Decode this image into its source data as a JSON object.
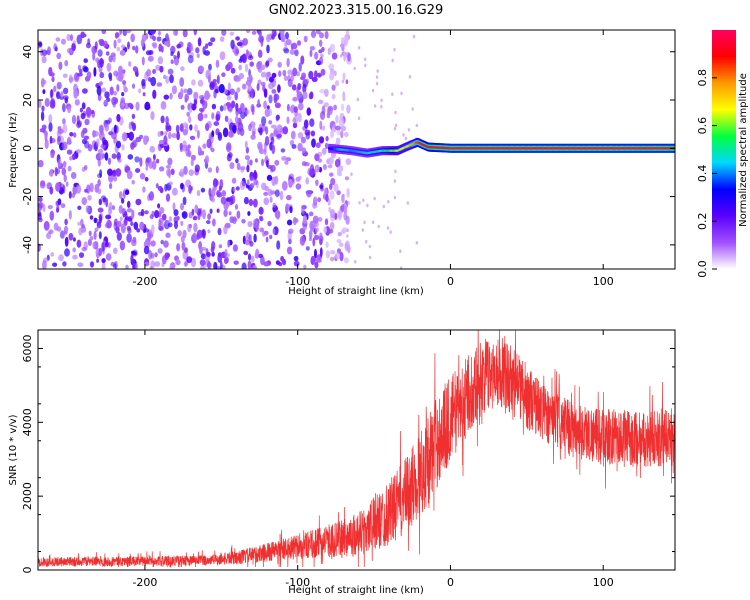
{
  "title": "GN02.2023.315.00.16.G29",
  "chart_data": [
    {
      "type": "heatmap",
      "panel": "spectrogram",
      "xlabel": "Height of straight line (km)",
      "ylabel": "Frequency (Hz)",
      "xlim": [
        -270,
        147
      ],
      "ylim": [
        -50,
        49
      ],
      "xticks": [
        -200,
        -100,
        0,
        100
      ],
      "yticks": [
        -40,
        -20,
        0,
        20,
        40
      ],
      "colorbar": {
        "label": "Normalized spectral amplitude",
        "range": [
          0,
          1
        ],
        "ticks": [
          "0.0",
          "0.2",
          "0.4",
          "0.6",
          "0.8"
        ],
        "colormap": [
          "#ffffff",
          "#a050ff",
          "#5a00ff",
          "#0000ff",
          "#00d8ff",
          "#00ff40",
          "#ffff00",
          "#ff9900",
          "#ff0000",
          "#ff0060"
        ]
      },
      "noise_region": {
        "x_from": -270,
        "x_to": -72,
        "level": 0.25
      },
      "signal_track": [
        {
          "x": -80,
          "f": 0.0,
          "amp": 0.3
        },
        {
          "x": -72,
          "f": -0.5,
          "amp": 0.45
        },
        {
          "x": -65,
          "f": -1.0,
          "amp": 0.4
        },
        {
          "x": -55,
          "f": -2.0,
          "amp": 0.45
        },
        {
          "x": -45,
          "f": -1.0,
          "amp": 0.5
        },
        {
          "x": -35,
          "f": -1.0,
          "amp": 0.65
        },
        {
          "x": -28,
          "f": 1.0,
          "amp": 0.7
        },
        {
          "x": -22,
          "f": 2.5,
          "amp": 0.85
        },
        {
          "x": -15,
          "f": 0.5,
          "amp": 0.95
        },
        {
          "x": 0,
          "f": 0.0,
          "amp": 1.0
        },
        {
          "x": 50,
          "f": 0.0,
          "amp": 1.0
        },
        {
          "x": 100,
          "f": 0.0,
          "amp": 1.0
        },
        {
          "x": 147,
          "f": 0.0,
          "amp": 1.0
        }
      ]
    },
    {
      "type": "line",
      "panel": "snr",
      "xlabel": "Height of straight line (km)",
      "ylabel": "SNR (10 * v/v)",
      "xlim": [
        -270,
        147
      ],
      "ylim": [
        0,
        6500
      ],
      "xticks": [
        -200,
        -100,
        0,
        100
      ],
      "yticks": [
        0,
        2000,
        4000,
        6000
      ],
      "color": "#f03030",
      "series": [
        {
          "x": [
            -270,
            -240,
            -200,
            -160,
            -140,
            -120,
            -100,
            -90,
            -80,
            -70,
            -60,
            -50,
            -40,
            -30,
            -20,
            -10,
            0,
            10,
            20,
            30,
            40,
            50,
            60,
            70,
            80,
            90,
            100,
            110,
            120,
            130,
            140,
            147
          ],
          "mean": [
            220,
            230,
            240,
            260,
            330,
            480,
            620,
            700,
            780,
            850,
            1000,
            1250,
            1550,
            1950,
            2600,
            3400,
            4100,
            4700,
            5200,
            5400,
            5200,
            4700,
            4300,
            4000,
            3800,
            3700,
            3600,
            3600,
            3550,
            3550,
            3600,
            3600
          ],
          "spread": [
            160,
            160,
            170,
            180,
            230,
            320,
            420,
            480,
            560,
            640,
            760,
            920,
            1100,
            1300,
            1500,
            1600,
            1500,
            1300,
            1300,
            1200,
            1200,
            1100,
            1000,
            950,
            950,
            950,
            950,
            950,
            950,
            950,
            1000,
            1100
          ]
        }
      ]
    }
  ]
}
